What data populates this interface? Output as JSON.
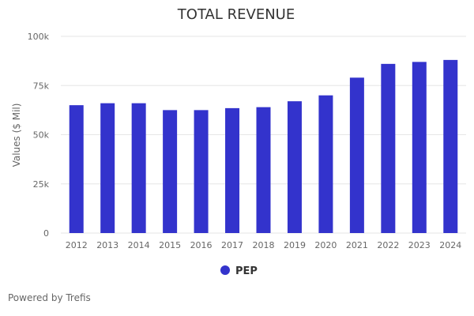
{
  "chart_data": {
    "type": "bar",
    "title": "TOTAL REVENUE",
    "xlabel": "",
    "ylabel": "Values ($ Mil)",
    "categories": [
      "2012",
      "2013",
      "2014",
      "2015",
      "2016",
      "2017",
      "2018",
      "2019",
      "2020",
      "2021",
      "2022",
      "2023",
      "2024"
    ],
    "series": [
      {
        "name": "PEP",
        "values": [
          65000,
          66000,
          66000,
          62500,
          62500,
          63500,
          64000,
          67000,
          70000,
          79000,
          86000,
          87000,
          88000
        ]
      }
    ],
    "ylim": [
      0,
      100000
    ],
    "yticks": [
      0,
      25000,
      50000,
      75000,
      100000
    ],
    "ytick_labels": [
      "0",
      "25k",
      "50k",
      "75k",
      "100k"
    ],
    "grid": true,
    "legend_position": "bottom-center"
  },
  "colors": {
    "bar": "#3333cc",
    "grid": "#e6e6e6",
    "axis_text": "#666666",
    "title": "#333333"
  },
  "footer": {
    "credit": "Powered by Trefis"
  }
}
